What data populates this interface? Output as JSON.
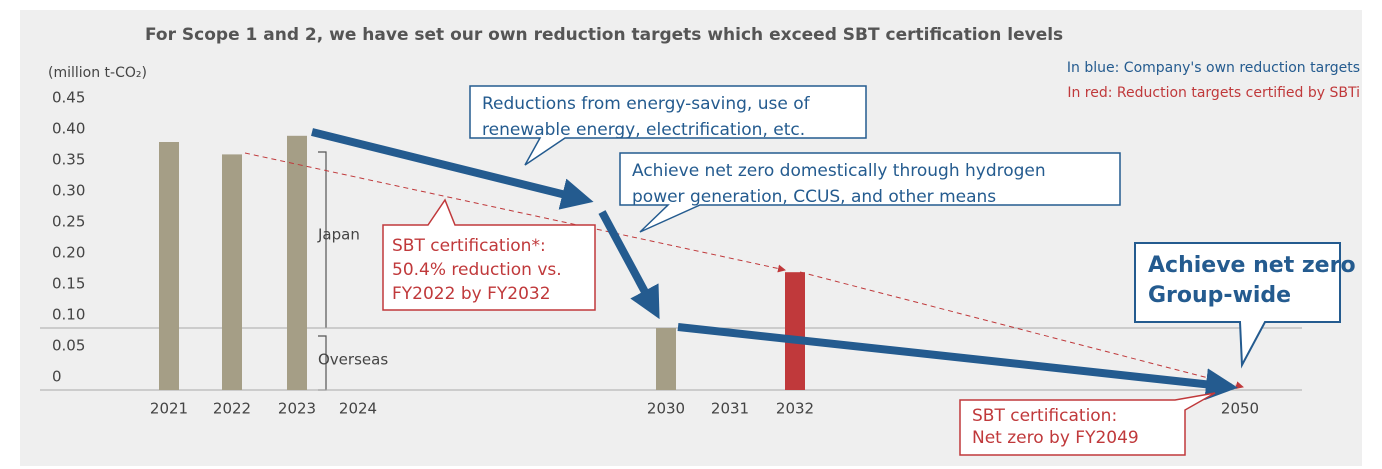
{
  "chart_data": {
    "type": "bar",
    "title": "For Scope 1 and 2, we have set our own reduction targets which exceed SBT certification levels",
    "y_axis_label": "(million t-CO₂)",
    "legend": [
      "In blue: Company's own reduction targets",
      "In red:  Reduction targets certified by SBTi"
    ],
    "categories": [
      "2021",
      "2022",
      "2023",
      "2024",
      "2030",
      "2031",
      "2032",
      "2050"
    ],
    "values": [
      0.4,
      0.38,
      0.41,
      null,
      0.1,
      null,
      0.19,
      null
    ],
    "colors": [
      "#a59e86",
      "#a59e86",
      "#a59e86",
      null,
      "#a59e86",
      null,
      "#c0393b",
      null
    ],
    "ylim": [
      0,
      0.45
    ],
    "yticks": [
      0,
      0.05,
      {
        "value": 0.1,
        "label": "0.10"
      },
      0.15,
      {
        "value": 0.2,
        "label": "0.20"
      },
      0.25,
      {
        "value": 0.3,
        "label": "0.30"
      },
      0.35,
      {
        "value": 0.4,
        "label": "0.40"
      },
      0.45
    ],
    "segment_labels": {
      "japan": "Japan",
      "overseas": "Overseas"
    },
    "callouts": {
      "reductions": [
        "Reductions from energy-saving, use of",
        "renewable energy, electrification, etc."
      ],
      "domestic": [
        "Achieve net zero domestically through hydrogen",
        "power generation, CCUS, and other means"
      ],
      "sbt2032": [
        "SBT certification*:",
        "50.4% reduction vs.",
        "FY2022 by FY2032"
      ],
      "groupwide": [
        "Achieve net zero",
        "Group-wide"
      ],
      "sbt2049": [
        "SBT certification:",
        "Net zero by FY2049"
      ]
    }
  }
}
